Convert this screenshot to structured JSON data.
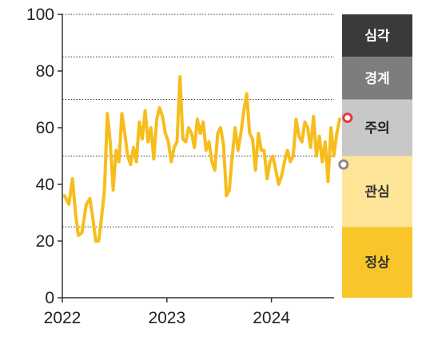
{
  "chart_data": {
    "type": "line",
    "title": "",
    "xlabel": "",
    "ylabel": "",
    "ylim": [
      0,
      100
    ],
    "y_ticks": [
      0,
      20,
      40,
      60,
      80,
      100
    ],
    "x_ticks": [
      "2022",
      "2023",
      "2024"
    ],
    "x_range": [
      "2022-01",
      "2024-09"
    ],
    "grid": "horizontal dotted at 25, 50, 70, 85, 100",
    "threshold_lines": [
      25,
      50,
      70,
      85,
      100
    ],
    "line_color": "#f6bd1c",
    "series": [
      {
        "x": [
          "2022-01",
          "2022-01",
          "2022-02",
          "2022-02",
          "2022-02",
          "2022-03",
          "2022-03",
          "2022-04",
          "2022-04",
          "2022-04",
          "2022-05",
          "2022-05",
          "2022-05",
          "2022-06",
          "2022-06",
          "2022-06",
          "2022-07",
          "2022-07",
          "2022-07",
          "2022-08",
          "2022-08",
          "2022-08",
          "2022-09",
          "2022-09",
          "2022-09",
          "2022-10",
          "2022-10",
          "2022-10",
          "2022-11",
          "2022-11",
          "2022-11",
          "2022-12",
          "2022-12",
          "2022-12",
          "2023-01",
          "2023-01",
          "2023-01",
          "2023-02",
          "2023-02",
          "2023-02",
          "2023-03",
          "2023-03",
          "2023-03",
          "2023-04",
          "2023-04",
          "2023-04",
          "2023-05",
          "2023-05",
          "2023-05",
          "2023-06",
          "2023-06",
          "2023-06",
          "2023-07",
          "2023-07",
          "2023-07",
          "2023-08",
          "2023-08",
          "2023-08",
          "2023-09",
          "2023-09",
          "2023-09",
          "2023-10",
          "2023-10",
          "2023-10",
          "2023-11",
          "2023-11",
          "2023-11",
          "2023-12",
          "2023-12",
          "2023-12",
          "2024-01",
          "2024-01",
          "2024-01",
          "2024-02",
          "2024-02",
          "2024-02",
          "2024-03",
          "2024-03",
          "2024-03",
          "2024-04",
          "2024-04",
          "2024-04",
          "2024-05",
          "2024-05",
          "2024-05",
          "2024-06",
          "2024-06",
          "2024-06",
          "2024-07",
          "2024-07",
          "2024-07",
          "2024-08",
          "2024-08",
          "2024-08"
        ],
        "values": [
          36,
          33,
          42,
          30,
          22,
          23,
          33,
          35,
          28,
          20,
          20,
          28,
          38,
          65,
          55,
          38,
          52,
          48,
          65,
          58,
          50,
          47,
          53,
          48,
          62,
          56,
          66,
          55,
          60,
          49,
          63,
          67,
          64,
          58,
          55,
          48,
          53,
          55,
          78,
          56,
          55,
          60,
          58,
          53,
          63,
          58,
          62,
          52,
          55,
          48,
          45,
          58,
          60,
          54,
          36,
          38,
          50,
          60,
          52,
          58,
          66,
          72,
          58,
          56,
          45,
          58,
          52,
          52,
          42,
          48,
          50,
          45,
          40,
          43,
          48,
          52,
          48,
          50,
          63,
          57,
          55,
          62,
          60,
          53,
          64,
          50,
          57,
          48,
          55,
          41,
          60,
          50,
          58,
          63
        ]
      }
    ],
    "markers": [
      {
        "x": "2024-09",
        "value": 63.5,
        "style": "red-ring",
        "color": "#e8363c"
      },
      {
        "x": "2024-09",
        "value": 47,
        "style": "gray-ring",
        "color": "#8a8a8a"
      }
    ],
    "bands": [
      {
        "label": "심각",
        "from": 85,
        "to": 100,
        "bg": "#3a3a3a",
        "text_color": "#ffffff"
      },
      {
        "label": "경계",
        "from": 70,
        "to": 85,
        "bg": "#7d7d7d",
        "text_color": "#ffffff"
      },
      {
        "label": "주의",
        "from": 50,
        "to": 70,
        "bg": "#c8c8c8",
        "text_color": "#222222"
      },
      {
        "label": "관심",
        "from": 25,
        "to": 50,
        "bg": "#ffe598",
        "text_color": "#333333"
      },
      {
        "label": "정상",
        "from": 0,
        "to": 25,
        "bg": "#f8c62a",
        "text_color": "#333333"
      }
    ]
  }
}
